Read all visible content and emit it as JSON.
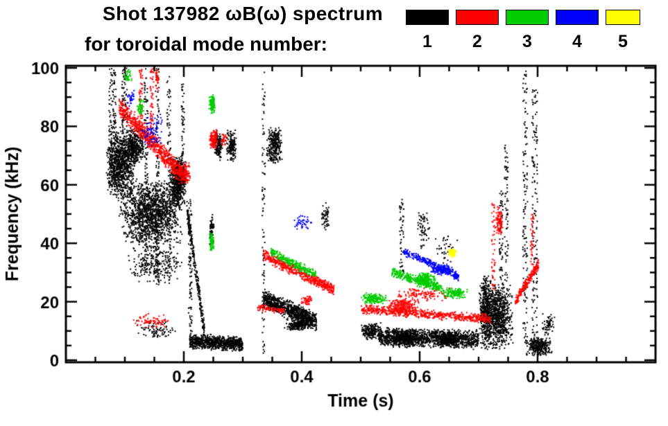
{
  "chart_data": {
    "type": "scatter",
    "title": "Shot 137982 ωB(ω) spectrum",
    "subtitle": "for toroidal mode number:",
    "xlabel": "Time (s)",
    "ylabel": "Frequency (kHz)",
    "xlim": [
      0,
      1.0
    ],
    "ylim": [
      0,
      100
    ],
    "xticks_major": [
      0.2,
      0.4,
      0.6,
      0.8
    ],
    "xtick_labels": [
      "0.2",
      "0.4",
      "0.6",
      "0.8"
    ],
    "xticks_minor_step": 0.05,
    "yticks_major": [
      0,
      20,
      40,
      60,
      80,
      100
    ],
    "ytick_labels": [
      "0",
      "20",
      "40",
      "60",
      "80",
      "100"
    ],
    "yticks_minor_step": 5,
    "grid": false,
    "legend_position": "top-right",
    "legend": [
      {
        "label": "1",
        "color": "#000000"
      },
      {
        "label": "2",
        "color": "#ff0000"
      },
      {
        "label": "3",
        "color": "#00cc00"
      },
      {
        "label": "4",
        "color": "#0000ff"
      },
      {
        "label": "5",
        "color": "#ffff00"
      }
    ],
    "series": [
      {
        "name": "toroidal mode n=1",
        "color": "#000000",
        "clusters": [
          {
            "type": "vstreak",
            "t": [
              0.073,
              0.085
            ],
            "f": [
              60,
              100
            ],
            "n": 150
          },
          {
            "type": "blob",
            "t": [
              0.068,
              0.118
            ],
            "f": [
              54,
              80
            ],
            "n": 900
          },
          {
            "type": "vstreak",
            "t": [
              0.095,
              0.105
            ],
            "f": [
              80,
              100
            ],
            "n": 80
          },
          {
            "type": "blob",
            "t": [
              0.1,
              0.135
            ],
            "f": [
              66,
              80
            ],
            "n": 350
          },
          {
            "type": "blob",
            "t": [
              0.09,
              0.2
            ],
            "f": [
              38,
              62
            ],
            "n": 1400
          },
          {
            "type": "blob",
            "t": [
              0.1,
              0.2
            ],
            "f": [
              26,
              40
            ],
            "n": 250
          },
          {
            "type": "vstreak",
            "t": [
              0.133,
              0.139
            ],
            "f": [
              30,
              100
            ],
            "n": 120
          },
          {
            "type": "vstreak",
            "t": [
              0.152,
              0.158
            ],
            "f": [
              25,
              100
            ],
            "n": 120
          },
          {
            "type": "vstreak",
            "t": [
              0.171,
              0.178
            ],
            "f": [
              25,
              97
            ],
            "n": 110
          },
          {
            "type": "blob",
            "t": [
              0.175,
              0.205
            ],
            "f": [
              52,
              70
            ],
            "n": 600
          },
          {
            "type": "vstreak",
            "t": [
              0.196,
              0.201
            ],
            "f": [
              60,
              97
            ],
            "n": 60
          },
          {
            "type": "band",
            "t": [
              0.205,
              0.235
            ],
            "f": [
              52,
              10
            ],
            "s": 4,
            "n": 260
          },
          {
            "type": "vstreak",
            "t": [
              0.208,
              0.214
            ],
            "f": [
              8,
              55
            ],
            "n": 90
          },
          {
            "type": "band",
            "t": [
              0.21,
              0.3
            ],
            "f": [
              6.5,
              5.5
            ],
            "s": 2.8,
            "n": 800
          },
          {
            "type": "blob",
            "t": [
              0.115,
              0.19
            ],
            "f": [
              7,
              14
            ],
            "n": 80
          },
          {
            "type": "blob",
            "t": [
              0.243,
              0.252
            ],
            "f": [
              38,
              50
            ],
            "n": 60
          },
          {
            "type": "blob",
            "t": [
              0.252,
              0.266
            ],
            "f": [
              68,
              79
            ],
            "n": 160
          },
          {
            "type": "blob",
            "t": [
              0.272,
              0.29
            ],
            "f": [
              68,
              79
            ],
            "n": 160
          },
          {
            "type": "vstreak",
            "t": [
              0.333,
              0.338
            ],
            "f": [
              2,
              99
            ],
            "n": 90
          },
          {
            "type": "blob",
            "t": [
              0.34,
              0.367
            ],
            "f": [
              67,
              80
            ],
            "n": 280
          },
          {
            "type": "band",
            "t": [
              0.335,
              0.425
            ],
            "f": [
              21,
              13
            ],
            "s": 3.5,
            "n": 900
          },
          {
            "type": "blob",
            "t": [
              0.37,
              0.42
            ],
            "f": [
              10,
              14
            ],
            "n": 200
          },
          {
            "type": "blob",
            "t": [
              0.433,
              0.447
            ],
            "f": [
              44,
              54
            ],
            "n": 50
          },
          {
            "type": "blob",
            "t": [
              0.5,
              0.535
            ],
            "f": [
              7,
              13
            ],
            "n": 180
          },
          {
            "type": "band",
            "t": [
              0.53,
              0.7
            ],
            "f": [
              8,
              7
            ],
            "s": 3.5,
            "n": 1300
          },
          {
            "type": "blob",
            "t": [
              0.55,
              0.6
            ],
            "f": [
              4,
              11
            ],
            "n": 250
          },
          {
            "type": "blob",
            "t": [
              0.63,
              0.67
            ],
            "f": [
              4,
              10
            ],
            "n": 200
          },
          {
            "type": "vstreak",
            "t": [
              0.566,
              0.573
            ],
            "f": [
              28,
              55
            ],
            "n": 50
          },
          {
            "type": "blob",
            "t": [
              0.595,
              0.618
            ],
            "f": [
              38,
              52
            ],
            "n": 60
          },
          {
            "type": "blob",
            "t": [
              0.625,
              0.665
            ],
            "f": [
              30,
              45
            ],
            "n": 40
          },
          {
            "type": "blob",
            "t": [
              0.7,
              0.725
            ],
            "f": [
              3,
              30
            ],
            "n": 450
          },
          {
            "type": "blob",
            "t": [
              0.705,
              0.76
            ],
            "f": [
              3,
              27
            ],
            "n": 800
          },
          {
            "type": "vstreak",
            "t": [
              0.735,
              0.741
            ],
            "f": [
              27,
              58
            ],
            "n": 60
          },
          {
            "type": "vstreak",
            "t": [
              0.744,
              0.75
            ],
            "f": [
              27,
              75
            ],
            "n": 70
          },
          {
            "type": "vstreak",
            "t": [
              0.775,
              0.783
            ],
            "f": [
              2,
              99
            ],
            "n": 140
          },
          {
            "type": "vstreak",
            "t": [
              0.79,
              0.8
            ],
            "f": [
              2,
              93
            ],
            "n": 150
          },
          {
            "type": "blob",
            "t": [
              0.78,
              0.825
            ],
            "f": [
              1.5,
              8
            ],
            "n": 300
          },
          {
            "type": "blob",
            "t": [
              0.807,
              0.83
            ],
            "f": [
              8,
              16
            ],
            "n": 60
          }
        ]
      },
      {
        "name": "toroidal mode n=2",
        "color": "#ff0000",
        "clusters": [
          {
            "type": "band",
            "t": [
              0.09,
              0.195
            ],
            "f": [
              87,
              64
            ],
            "s": 4,
            "n": 700
          },
          {
            "type": "vstreak",
            "t": [
              0.124,
              0.13
            ],
            "f": [
              80,
              100
            ],
            "n": 60
          },
          {
            "type": "vstreak",
            "t": [
              0.143,
              0.149
            ],
            "f": [
              72,
              100
            ],
            "n": 70
          },
          {
            "type": "blob",
            "t": [
              0.152,
              0.158
            ],
            "f": [
              92,
              100
            ],
            "n": 30
          },
          {
            "type": "blob",
            "t": [
              0.19,
              0.212
            ],
            "f": [
              60,
              68
            ],
            "n": 140
          },
          {
            "type": "blob",
            "t": [
              0.11,
              0.185
            ],
            "f": [
              11,
              16
            ],
            "n": 70
          },
          {
            "type": "blob",
            "t": [
              0.243,
              0.258
            ],
            "f": [
              72,
              79
            ],
            "n": 120
          },
          {
            "type": "blob",
            "t": [
              0.262,
              0.274
            ],
            "f": [
              73,
              78
            ],
            "n": 30
          },
          {
            "type": "band",
            "t": [
              0.325,
              0.37
            ],
            "f": [
              18,
              17
            ],
            "s": 1.2,
            "n": 80
          },
          {
            "type": "band",
            "t": [
              0.335,
              0.455
            ],
            "f": [
              36,
              24
            ],
            "s": 2.2,
            "n": 550
          },
          {
            "type": "blob",
            "t": [
              0.398,
              0.42
            ],
            "f": [
              19,
              22
            ],
            "n": 50
          },
          {
            "type": "band",
            "t": [
              0.5,
              0.72
            ],
            "f": [
              17.5,
              14
            ],
            "s": 1.8,
            "n": 650
          },
          {
            "type": "blob",
            "t": [
              0.545,
              0.6
            ],
            "f": [
              16,
              21
            ],
            "n": 200
          },
          {
            "type": "blob",
            "t": [
              0.55,
              0.66
            ],
            "f": [
              20,
              25
            ],
            "n": 120
          },
          {
            "type": "vstreak",
            "t": [
              0.722,
              0.728
            ],
            "f": [
              24,
              55
            ],
            "n": 50
          },
          {
            "type": "blob",
            "t": [
              0.728,
              0.742
            ],
            "f": [
              42,
              53
            ],
            "n": 90
          },
          {
            "type": "band",
            "t": [
              0.762,
              0.802
            ],
            "f": [
              20,
              33
            ],
            "s": 2,
            "n": 220
          },
          {
            "type": "vstreak",
            "t": [
              0.788,
              0.794
            ],
            "f": [
              32,
              50
            ],
            "n": 40
          }
        ]
      },
      {
        "name": "toroidal mode n=3",
        "color": "#00cc00",
        "clusters": [
          {
            "type": "blob",
            "t": [
              0.098,
              0.112
            ],
            "f": [
              94,
              100
            ],
            "n": 35
          },
          {
            "type": "blob",
            "t": [
              0.12,
              0.133
            ],
            "f": [
              82,
              90
            ],
            "n": 45
          },
          {
            "type": "blob",
            "t": [
              0.243,
              0.253
            ],
            "f": [
              84,
              91
            ],
            "n": 110
          },
          {
            "type": "blob",
            "t": [
              0.243,
              0.251
            ],
            "f": [
              37,
              44
            ],
            "n": 70
          },
          {
            "type": "band",
            "t": [
              0.348,
              0.425
            ],
            "f": [
              37,
              29
            ],
            "s": 1.8,
            "n": 260
          },
          {
            "type": "blob",
            "t": [
              0.5,
              0.545
            ],
            "f": [
              19,
              23
            ],
            "n": 160
          },
          {
            "type": "band",
            "t": [
              0.553,
              0.638
            ],
            "f": [
              30,
              24.5
            ],
            "s": 1.8,
            "n": 320
          },
          {
            "type": "blob",
            "t": [
              0.592,
              0.627
            ],
            "f": [
              25,
              30
            ],
            "n": 200
          },
          {
            "type": "blob",
            "t": [
              0.635,
              0.683
            ],
            "f": [
              21,
              25
            ],
            "n": 150
          }
        ]
      },
      {
        "name": "toroidal mode n=4",
        "color": "#0000ff",
        "clusters": [
          {
            "type": "blob",
            "t": [
              0.104,
              0.118
            ],
            "f": [
              86,
              93
            ],
            "n": 30
          },
          {
            "type": "blob",
            "t": [
              0.128,
              0.168
            ],
            "f": [
              73,
              85
            ],
            "n": 70
          },
          {
            "type": "blob",
            "t": [
              0.383,
              0.417
            ],
            "f": [
              44,
              50
            ],
            "n": 45
          },
          {
            "type": "band",
            "t": [
              0.573,
              0.665
            ],
            "f": [
              37,
              29
            ],
            "s": 1.5,
            "n": 240
          },
          {
            "type": "blob",
            "t": [
              0.617,
              0.658
            ],
            "f": [
              29,
              33
            ],
            "n": 160
          },
          {
            "type": "blob",
            "t": [
              0.655,
              0.668
            ],
            "f": [
              27,
              30
            ],
            "n": 40
          }
        ]
      },
      {
        "name": "toroidal mode n=5",
        "color": "#ffff00",
        "clusters": [
          {
            "type": "blob",
            "t": [
              0.648,
              0.663
            ],
            "f": [
              35,
              38.5
            ],
            "n": 80
          }
        ]
      }
    ]
  }
}
